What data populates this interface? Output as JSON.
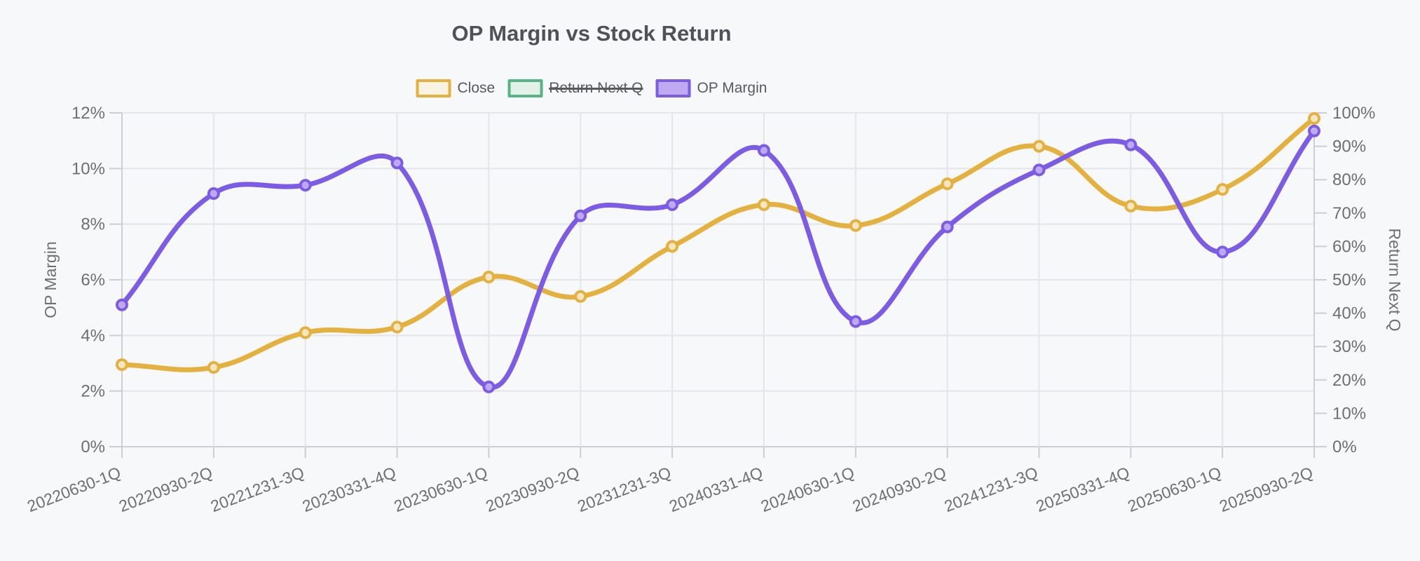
{
  "title": "OP Margin vs Stock Return",
  "legend": {
    "items": [
      {
        "label": "Close",
        "color": "#e4b13f",
        "fill": "#f8f3e3",
        "hidden": false
      },
      {
        "label": "Return Next Q",
        "color": "#56b485",
        "fill": "#e4f1e9",
        "hidden": true
      },
      {
        "label": "OP Margin",
        "color": "#7c5ce4",
        "fill": "#bfa9f1",
        "hidden": false
      }
    ]
  },
  "chart_data": {
    "type": "line",
    "title": "OP Margin vs Stock Return",
    "x": [
      "20220630-1Q",
      "20220930-2Q",
      "20221231-3Q",
      "20230331-4Q",
      "20230630-1Q",
      "20230930-2Q",
      "20231231-3Q",
      "20240331-4Q",
      "20240630-1Q",
      "20240930-2Q",
      "20241231-3Q",
      "20250331-4Q",
      "20250630-1Q",
      "20250930-2Q"
    ],
    "series": [
      {
        "name": "Close",
        "axis": "left",
        "color": "#e4b13f",
        "point_fill": "#f6ecd2",
        "hidden": false,
        "values": [
          2.95,
          2.85,
          4.1,
          4.3,
          6.1,
          5.4,
          7.2,
          8.7,
          7.95,
          9.45,
          10.8,
          8.65,
          9.25,
          11.8
        ]
      },
      {
        "name": "Return Next Q",
        "axis": "right",
        "color": "#56b485",
        "point_fill": "#e4f1e9",
        "hidden": true,
        "values": []
      },
      {
        "name": "OP Margin",
        "axis": "left",
        "color": "#7c5ce4",
        "point_fill": "#c4b0f2",
        "hidden": false,
        "values": [
          5.1,
          9.1,
          9.4,
          10.2,
          2.15,
          8.3,
          8.7,
          10.65,
          4.5,
          7.9,
          9.95,
          10.85,
          7.0,
          11.35
        ]
      }
    ],
    "left_axis": {
      "title": "OP Margin",
      "min": 0,
      "max": 12,
      "step": 2,
      "tick_labels": [
        "0%",
        "2%",
        "4%",
        "6%",
        "8%",
        "10%",
        "12%"
      ]
    },
    "right_axis": {
      "title": "Return Next Q",
      "min": 0,
      "max": 100,
      "step": 10,
      "tick_labels": [
        "0%",
        "10%",
        "20%",
        "30%",
        "40%",
        "50%",
        "60%",
        "70%",
        "80%",
        "90%",
        "100%"
      ]
    },
    "grid": true,
    "legend_position": "top",
    "x_label_rotation_deg": -21,
    "line_tension": 0.4,
    "note": "Series 'Return Next Q' is toggled off in the legend (struck through); no data drawn for it."
  },
  "colors": {
    "background": "#f7f8fa",
    "grid": "#e4e5e8",
    "axis": "#cdced2",
    "tick_text": "#6e6f71",
    "title_text": "#505257",
    "legend_text": "#595a5e"
  }
}
